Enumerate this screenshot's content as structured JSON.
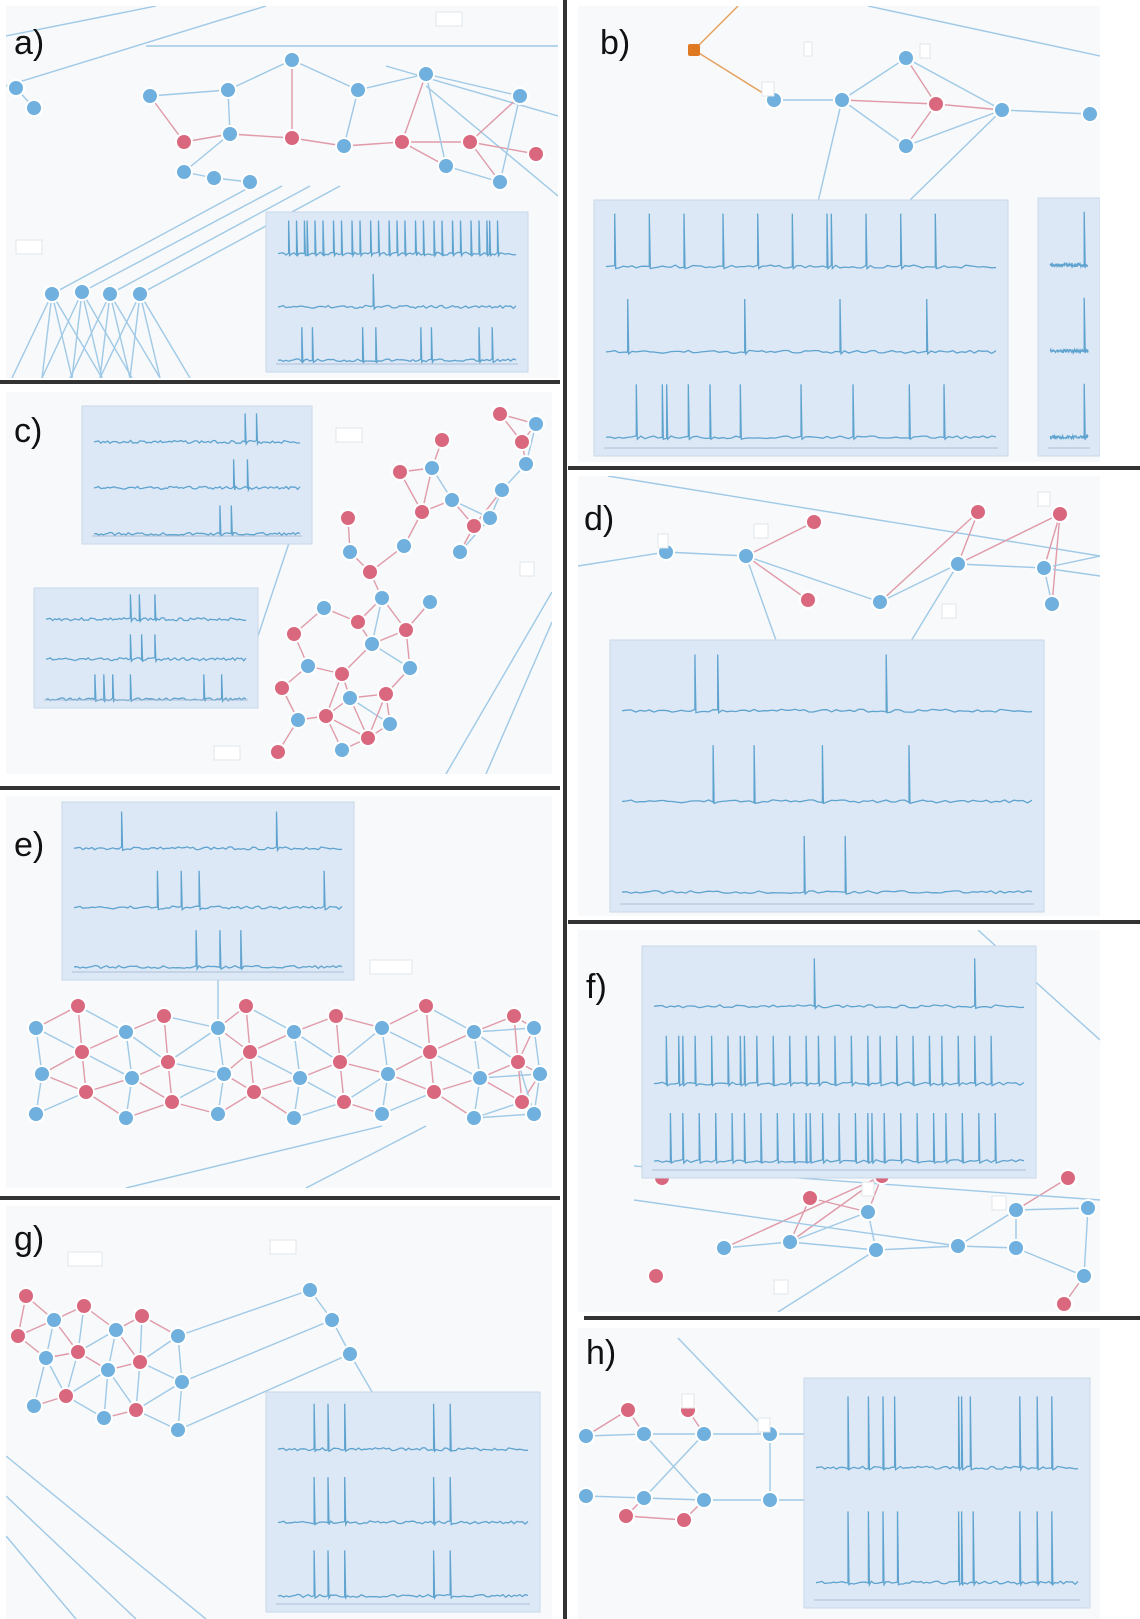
{
  "panels": [
    {
      "id": "a",
      "label": "a)"
    },
    {
      "id": "b",
      "label": "b)"
    },
    {
      "id": "c",
      "label": "c)"
    },
    {
      "id": "d",
      "label": "d)"
    },
    {
      "id": "e",
      "label": "e)"
    },
    {
      "id": "f",
      "label": "f)"
    },
    {
      "id": "g",
      "label": "g)"
    },
    {
      "id": "h",
      "label": "h)"
    }
  ],
  "colors": {
    "background": "#f7f9fb",
    "node_excitatory": "#6fb0de",
    "node_inhibitory": "#d9687f",
    "node_input": "#e07a22",
    "edge_excitatory": "#9fc9e6",
    "edge_inhibitory": "#e09aa8",
    "trace_panel": "#dce8f6",
    "trace_line": "#5fa3cf",
    "divider": "#333333"
  },
  "trace_panels": {
    "a": {
      "traces": 3
    },
    "b": {
      "traces": 3
    },
    "c": {
      "traces": 3
    },
    "d": {
      "traces": 3
    },
    "e": {
      "traces": 3
    },
    "f": {
      "traces": 3
    },
    "g": {
      "traces": 3
    },
    "h": {
      "traces": 2
    }
  }
}
